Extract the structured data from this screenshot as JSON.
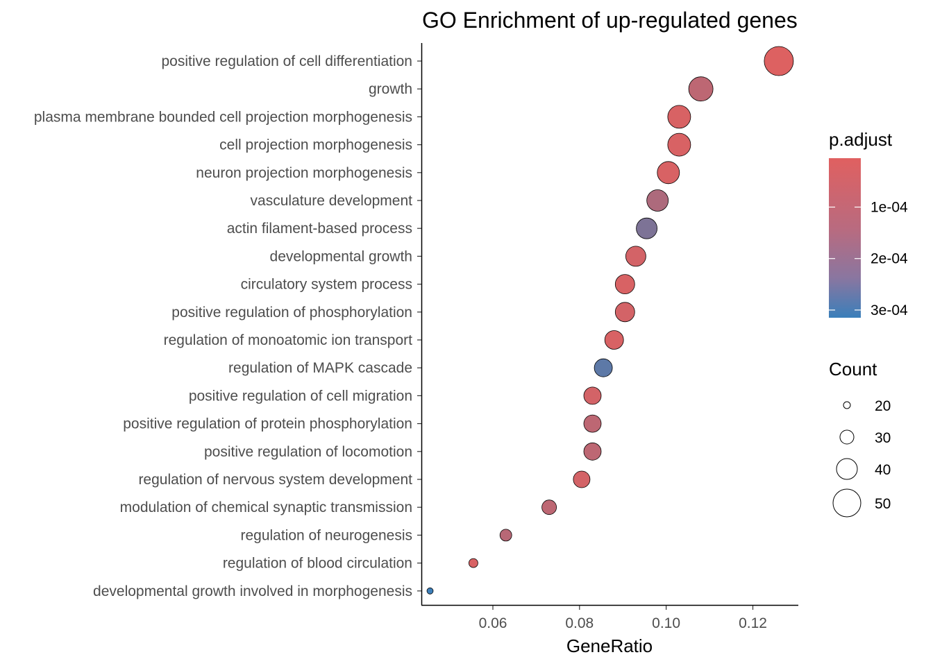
{
  "chart_data": {
    "type": "scatter",
    "title": "GO Enrichment of up-regulated genes",
    "xlabel": "GeneRatio",
    "ylabel": "",
    "xlim": [
      0.0435,
      0.1305
    ],
    "xticks": [
      0.06,
      0.08,
      0.1,
      0.12
    ],
    "xtick_labels": [
      "0.06",
      "0.08",
      "0.10",
      "0.12"
    ],
    "grid": false,
    "color_legend": {
      "title": "p.adjust",
      "range": [
        5e-06,
        0.000315
      ],
      "low_color": "#e06060",
      "high_color": "#3a7fba",
      "ticks": [
        0.0001,
        0.0002,
        0.0003
      ],
      "tick_labels": [
        "1e-04",
        "2e-04",
        "3e-04"
      ]
    },
    "size_legend": {
      "title": "Count",
      "values": [
        20,
        30,
        40,
        50
      ],
      "labels": [
        "20",
        "30",
        "40",
        "50"
      ]
    },
    "terms": [
      {
        "label": "positive regulation of cell differentiation",
        "gene_ratio": 0.126,
        "count": 52,
        "p_adjust": 1e-05
      },
      {
        "label": "growth",
        "gene_ratio": 0.108,
        "count": 45,
        "p_adjust": 7e-05
      },
      {
        "label": "plasma membrane bounded cell projection morphogenesis",
        "gene_ratio": 0.103,
        "count": 43,
        "p_adjust": 2e-05
      },
      {
        "label": "cell projection morphogenesis",
        "gene_ratio": 0.103,
        "count": 43,
        "p_adjust": 2e-05
      },
      {
        "label": "neuron projection morphogenesis",
        "gene_ratio": 0.1005,
        "count": 42,
        "p_adjust": 2e-05
      },
      {
        "label": "vasculature development",
        "gene_ratio": 0.098,
        "count": 41,
        "p_adjust": 0.0001
      },
      {
        "label": "actin filament-based process",
        "gene_ratio": 0.0955,
        "count": 40,
        "p_adjust": 0.00019
      },
      {
        "label": "developmental growth",
        "gene_ratio": 0.093,
        "count": 39,
        "p_adjust": 3e-05
      },
      {
        "label": "circulatory system process",
        "gene_ratio": 0.0905,
        "count": 38,
        "p_adjust": 2e-05
      },
      {
        "label": "positive regulation of phosphorylation",
        "gene_ratio": 0.0905,
        "count": 38,
        "p_adjust": 3e-05
      },
      {
        "label": "regulation of monoatomic ion transport",
        "gene_ratio": 0.088,
        "count": 37,
        "p_adjust": 2e-05
      },
      {
        "label": "regulation of MAPK cascade",
        "gene_ratio": 0.0855,
        "count": 36,
        "p_adjust": 0.00025
      },
      {
        "label": "positive regulation of cell migration",
        "gene_ratio": 0.083,
        "count": 35,
        "p_adjust": 3e-05
      },
      {
        "label": "positive regulation of protein phosphorylation",
        "gene_ratio": 0.083,
        "count": 35,
        "p_adjust": 7e-05
      },
      {
        "label": "positive regulation of locomotion",
        "gene_ratio": 0.083,
        "count": 35,
        "p_adjust": 7e-05
      },
      {
        "label": "regulation of nervous system development",
        "gene_ratio": 0.0805,
        "count": 34,
        "p_adjust": 3e-05
      },
      {
        "label": "modulation of chemical synaptic transmission",
        "gene_ratio": 0.073,
        "count": 31,
        "p_adjust": 7e-05
      },
      {
        "label": "regulation of neurogenesis",
        "gene_ratio": 0.063,
        "count": 27,
        "p_adjust": 8e-05
      },
      {
        "label": "regulation of blood circulation",
        "gene_ratio": 0.0555,
        "count": 23,
        "p_adjust": 2e-05
      },
      {
        "label": "developmental growth involved in morphogenesis",
        "gene_ratio": 0.0455,
        "count": 19,
        "p_adjust": 0.00031
      }
    ]
  }
}
